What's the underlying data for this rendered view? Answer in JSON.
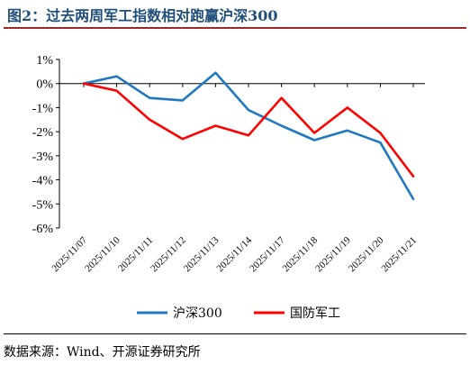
{
  "title": "图2：过去两周军工指数相对跑赢沪深300",
  "source": "数据来源：Wind、开源证券研究所",
  "chart_data": {
    "type": "line",
    "x": [
      "2025/11/07",
      "2025/11/10",
      "2025/11/11",
      "2025/11/12",
      "2025/11/13",
      "2025/11/14",
      "2025/11/17",
      "2025/11/18",
      "2025/11/19",
      "2025/11/20",
      "2025/11/21"
    ],
    "y_ticks": [
      "1%",
      "0%",
      "-1%",
      "-2%",
      "-3%",
      "-4%",
      "-5%",
      "-6%"
    ],
    "ylim": [
      -6,
      1
    ],
    "y_unit": "%",
    "grid": false,
    "legend_position": "bottom",
    "series": [
      {
        "name": "沪深300",
        "color": "#1f78c1",
        "values": [
          0,
          0.3,
          -0.6,
          -0.7,
          0.45,
          -1.1,
          -1.75,
          -2.35,
          -1.95,
          -2.45,
          -4.8
        ]
      },
      {
        "name": "国防军工",
        "color": "#ff0000",
        "values": [
          0,
          -0.3,
          -1.5,
          -2.3,
          -1.75,
          -2.15,
          -0.6,
          -2.05,
          -1.0,
          -2.05,
          -3.85
        ]
      }
    ]
  }
}
